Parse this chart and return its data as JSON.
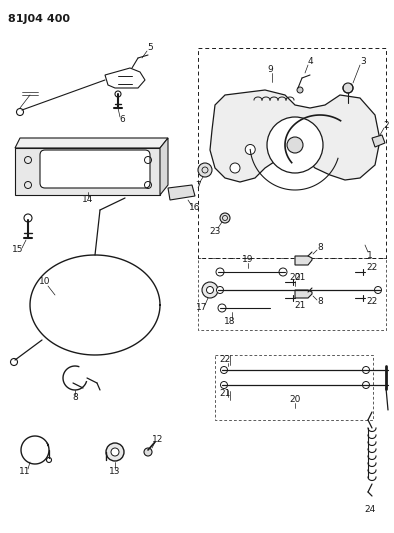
{
  "title": "81J04 400",
  "bg_color": "#ffffff",
  "line_color": "#1a1a1a",
  "fig_width": 3.94,
  "fig_height": 5.33,
  "dpi": 100
}
